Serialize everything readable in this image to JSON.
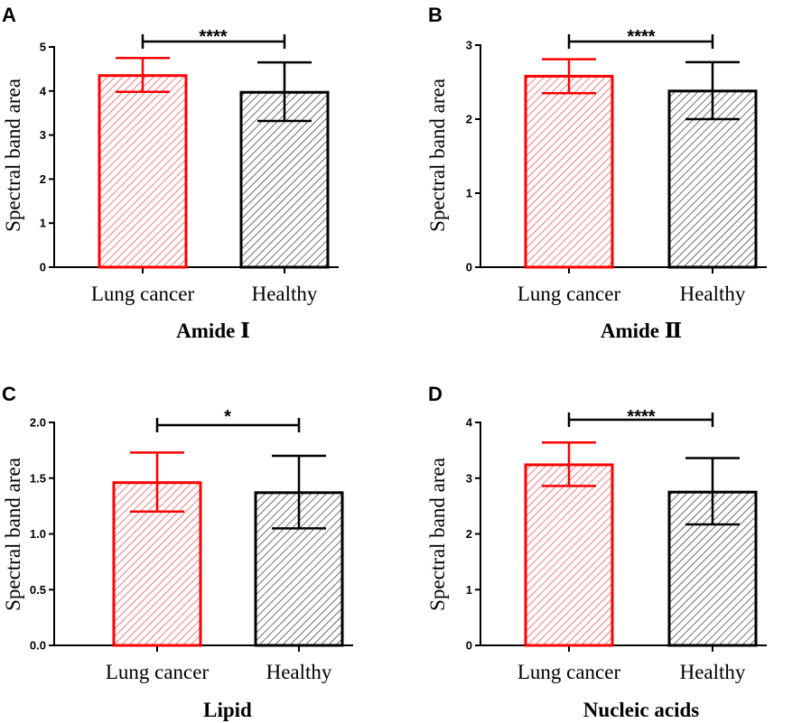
{
  "colors": {
    "cancer": "#ff0000",
    "healthy": "#000000"
  },
  "chart_data": [
    {
      "type": "bar",
      "panel": "A",
      "title": "Amide Ⅰ",
      "ylabel": "Spectral band area",
      "categories": [
        "Lung cancer",
        "Healthy"
      ],
      "values": [
        4.35,
        3.97
      ],
      "error": [
        [
          3.98,
          4.75
        ],
        [
          3.32,
          4.65
        ]
      ],
      "ylim": [
        0,
        5
      ],
      "yticks": [
        0,
        1,
        2,
        3,
        4,
        5
      ],
      "ytick_labels": [
        "0",
        "1",
        "2",
        "3",
        "4",
        "5"
      ],
      "significance": "****"
    },
    {
      "type": "bar",
      "panel": "B",
      "title": "Amide Ⅱ",
      "ylabel": "Spectral band area",
      "categories": [
        "Lung cancer",
        "Healthy"
      ],
      "values": [
        2.58,
        2.38
      ],
      "error": [
        [
          2.35,
          2.81
        ],
        [
          2.0,
          2.77
        ]
      ],
      "ylim": [
        0,
        3
      ],
      "yticks": [
        0,
        1,
        2,
        3
      ],
      "ytick_labels": [
        "0",
        "1",
        "2",
        "3"
      ],
      "significance": "****"
    },
    {
      "type": "bar",
      "panel": "C",
      "title": "Lipid",
      "ylabel": "Spectral band area",
      "categories": [
        "Lung cancer",
        "Healthy"
      ],
      "values": [
        1.46,
        1.37
      ],
      "error": [
        [
          1.2,
          1.73
        ],
        [
          1.05,
          1.7
        ]
      ],
      "ylim": [
        0,
        2.0
      ],
      "yticks": [
        0,
        0.5,
        1.0,
        1.5,
        2.0
      ],
      "ytick_labels": [
        "0.0",
        "0.5",
        "1.0",
        "1.5",
        "2.0"
      ],
      "significance": "*"
    },
    {
      "type": "bar",
      "panel": "D",
      "title": "Nucleic acids",
      "ylabel": "Spectral band area",
      "categories": [
        "Lung cancer",
        "Healthy"
      ],
      "values": [
        3.24,
        2.75
      ],
      "error": [
        [
          2.86,
          3.64
        ],
        [
          2.17,
          3.36
        ]
      ],
      "ylim": [
        0,
        4
      ],
      "yticks": [
        0,
        1,
        2,
        3,
        4
      ],
      "ytick_labels": [
        "0",
        "1",
        "2",
        "3",
        "4"
      ],
      "significance": "****"
    }
  ]
}
